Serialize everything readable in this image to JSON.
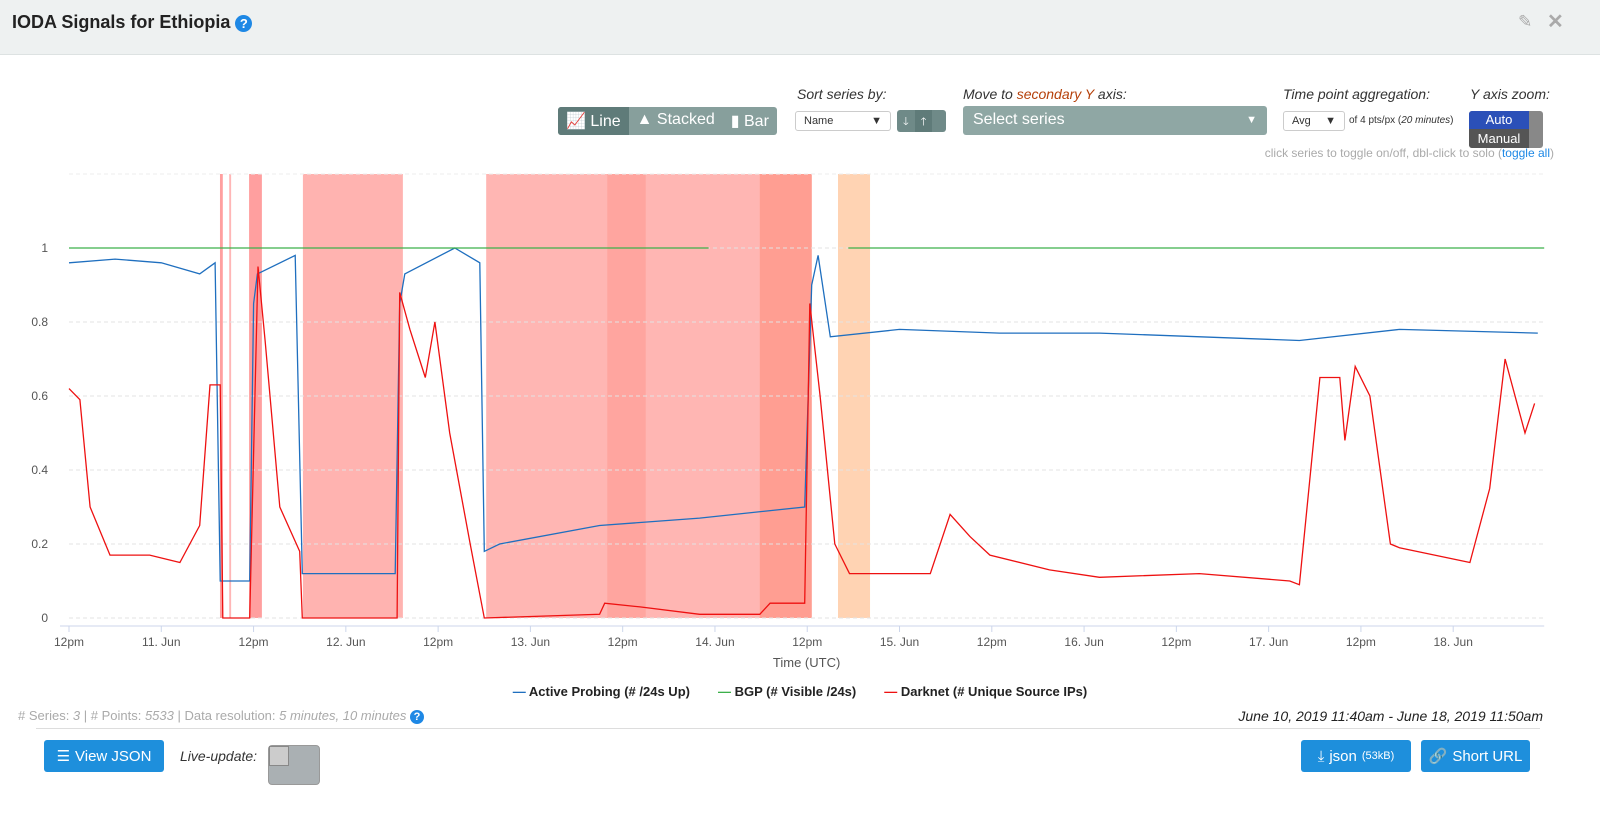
{
  "header": {
    "title": "IODA Signals for Ethiopia",
    "help_icon": "question-circle-icon",
    "edit_icon": "edit-icon",
    "close_icon": "close-icon"
  },
  "controls": {
    "chart_types": [
      {
        "label": "Line",
        "icon": "line-chart-icon",
        "active": true
      },
      {
        "label": "Stacked",
        "icon": "area-chart-icon",
        "active": false
      },
      {
        "label": "Bar",
        "icon": "bar-chart-icon",
        "active": false
      }
    ],
    "sort_label": "Sort series by:",
    "sort_value": "Name",
    "secondary_label_pre": "Move to ",
    "secondary_label_em": "secondary Y",
    "secondary_label_post": " axis:",
    "secondary_placeholder": "Select series",
    "aggregation_label": "Time point aggregation:",
    "aggregation_value": "Avg",
    "aggregation_note_pre": "of 4 pts/px (",
    "aggregation_note_em": "20 minutes",
    "aggregation_note_post": ")",
    "yzoom_label": "Y axis zoom:",
    "yzoom_auto": "Auto",
    "yzoom_manual": "Manual",
    "hint": "click series to toggle on/off, dbl-click to solo (",
    "hint_link": "toggle all",
    "hint_end": ")"
  },
  "chart_data": {
    "type": "line",
    "xlabel": "Time (UTC)",
    "ylabel": "",
    "ylim": [
      0,
      1.1
    ],
    "yticks": [
      "0",
      "0.2",
      "0.4",
      "0.6",
      "0.8",
      "1"
    ],
    "grid": true,
    "legend": "bottom",
    "xticks": [
      {
        "t": "2019-06-10 12:00",
        "label": "12pm"
      },
      {
        "t": "2019-06-11 00:00",
        "label": "11. Jun"
      },
      {
        "t": "2019-06-11 12:00",
        "label": "12pm"
      },
      {
        "t": "2019-06-12 00:00",
        "label": "12. Jun"
      },
      {
        "t": "2019-06-12 12:00",
        "label": "12pm"
      },
      {
        "t": "2019-06-13 00:00",
        "label": "13. Jun"
      },
      {
        "t": "2019-06-13 12:00",
        "label": "12pm"
      },
      {
        "t": "2019-06-14 00:00",
        "label": "14. Jun"
      },
      {
        "t": "2019-06-14 12:00",
        "label": "12pm"
      },
      {
        "t": "2019-06-15 00:00",
        "label": "15. Jun"
      },
      {
        "t": "2019-06-15 12:00",
        "label": "12pm"
      },
      {
        "t": "2019-06-16 00:00",
        "label": "16. Jun"
      },
      {
        "t": "2019-06-16 12:00",
        "label": "12pm"
      },
      {
        "t": "2019-06-17 00:00",
        "label": "17. Jun"
      },
      {
        "t": "2019-06-17 12:00",
        "label": "12pm"
      },
      {
        "t": "2019-06-18 00:00",
        "label": "18. Jun"
      }
    ],
    "xrange": [
      "2019-06-10 12:00",
      "2019-06-18 11:50"
    ],
    "alert_bands": [
      {
        "from": "2019-06-11 07:38",
        "to": "2019-06-11 08:00",
        "color": "#ff9f9f"
      },
      {
        "from": "2019-06-11 08:50",
        "to": "2019-06-11 09:05",
        "color": "#ffb6b6"
      },
      {
        "from": "2019-06-11 11:25",
        "to": "2019-06-11 13:05",
        "color": "#ff9f9f"
      },
      {
        "from": "2019-06-11 18:25",
        "to": "2019-06-12 07:25",
        "color": "#ffb3b0"
      },
      {
        "from": "2019-06-12 18:15",
        "to": "2019-06-14 12:35",
        "color": "#ffb6b3"
      },
      {
        "from": "2019-06-13 10:00",
        "to": "2019-06-13 15:00",
        "color": "#ffa59f"
      },
      {
        "from": "2019-06-14 05:50",
        "to": "2019-06-14 12:35",
        "color": "#ff9e92"
      },
      {
        "from": "2019-06-14 16:00",
        "to": "2019-06-14 20:10",
        "color": "#ffd3b3"
      }
    ],
    "series": [
      {
        "name": "Active Probing (# /24s Up)",
        "color": "#1f6fbf",
        "points": [
          [
            "2019-06-10 12:00",
            0.96
          ],
          [
            "2019-06-10 18:00",
            0.97
          ],
          [
            "2019-06-11 00:00",
            0.96
          ],
          [
            "2019-06-11 05:00",
            0.93
          ],
          [
            "2019-06-11 07:00",
            0.96
          ],
          [
            "2019-06-11 07:40",
            0.1
          ],
          [
            "2019-06-11 11:30",
            0.1
          ],
          [
            "2019-06-11 12:00",
            0.85
          ],
          [
            "2019-06-11 12:30",
            0.93
          ],
          [
            "2019-06-11 17:25",
            0.98
          ],
          [
            "2019-06-11 18:20",
            0.12
          ],
          [
            "2019-06-12 06:25",
            0.12
          ],
          [
            "2019-06-12 07:00",
            0.85
          ],
          [
            "2019-06-12 07:40",
            0.93
          ],
          [
            "2019-06-12 14:10",
            1.0
          ],
          [
            "2019-06-12 17:25",
            0.96
          ],
          [
            "2019-06-12 18:00",
            0.18
          ],
          [
            "2019-06-12 20:00",
            0.2
          ],
          [
            "2019-06-13 09:00",
            0.25
          ],
          [
            "2019-06-13 22:00",
            0.27
          ],
          [
            "2019-06-14 11:40",
            0.3
          ],
          [
            "2019-06-14 12:35",
            0.9
          ],
          [
            "2019-06-14 13:25",
            0.98
          ],
          [
            "2019-06-14 15:00",
            0.76
          ],
          [
            "2019-06-15 00:00",
            0.78
          ],
          [
            "2019-06-15 13:00",
            0.77
          ],
          [
            "2019-06-16 02:00",
            0.77
          ],
          [
            "2019-06-17 04:00",
            0.75
          ],
          [
            "2019-06-17 17:00",
            0.78
          ],
          [
            "2019-06-18 11:00",
            0.77
          ]
        ]
      },
      {
        "name": "BGP (# Visible /24s)",
        "color": "#3cb04a",
        "points": [
          [
            "2019-06-10 12:00",
            1
          ],
          [
            "2019-06-13 23:10",
            1
          ],
          [
            "2019-06-14 17:20",
            null
          ],
          [
            "2019-06-14 17:20",
            1
          ],
          [
            "2019-06-18 11:50",
            1
          ]
        ]
      },
      {
        "name": "Darknet (# Unique Source IPs)",
        "color": "#ee1111",
        "points": [
          [
            "2019-06-10 12:00",
            0.62
          ],
          [
            "2019-06-10 13:25",
            0.59
          ],
          [
            "2019-06-10 14:45",
            0.3
          ],
          [
            "2019-06-10 17:20",
            0.17
          ],
          [
            "2019-06-10 22:30",
            0.17
          ],
          [
            "2019-06-11 02:25",
            0.15
          ],
          [
            "2019-06-11 05:00",
            0.25
          ],
          [
            "2019-06-11 06:20",
            0.63
          ],
          [
            "2019-06-11 07:40",
            0.63
          ],
          [
            "2019-06-11 08:00",
            0.0
          ],
          [
            "2019-06-11 11:30",
            0.0
          ],
          [
            "2019-06-11 12:35",
            0.95
          ],
          [
            "2019-06-11 13:30",
            0.75
          ],
          [
            "2019-06-11 15:25",
            0.3
          ],
          [
            "2019-06-11 18:00",
            0.18
          ],
          [
            "2019-06-11 18:20",
            0.0
          ],
          [
            "2019-06-12 06:40",
            0.0
          ],
          [
            "2019-06-12 07:00",
            0.88
          ],
          [
            "2019-06-12 08:20",
            0.78
          ],
          [
            "2019-06-12 10:20",
            0.65
          ],
          [
            "2019-06-12 11:35",
            0.8
          ],
          [
            "2019-06-12 13:30",
            0.5
          ],
          [
            "2019-06-12 16:10",
            0.2
          ],
          [
            "2019-06-12 18:00",
            0.0
          ],
          [
            "2019-06-13 09:00",
            0.01
          ],
          [
            "2019-06-13 09:40",
            0.04
          ],
          [
            "2019-06-13 14:15",
            0.03
          ],
          [
            "2019-06-13 22:00",
            0.01
          ],
          [
            "2019-06-14 05:50",
            0.01
          ],
          [
            "2019-06-14 07:10",
            0.04
          ],
          [
            "2019-06-14 11:40",
            0.04
          ],
          [
            "2019-06-14 12:20",
            0.85
          ],
          [
            "2019-06-14 13:40",
            0.6
          ],
          [
            "2019-06-14 15:35",
            0.2
          ],
          [
            "2019-06-14 17:30",
            0.12
          ],
          [
            "2019-06-15 04:00",
            0.12
          ],
          [
            "2019-06-15 06:35",
            0.28
          ],
          [
            "2019-06-15 09:10",
            0.22
          ],
          [
            "2019-06-15 11:45",
            0.17
          ],
          [
            "2019-06-15 19:30",
            0.13
          ],
          [
            "2019-06-16 02:00",
            0.11
          ],
          [
            "2019-06-16 15:00",
            0.12
          ],
          [
            "2019-06-17 02:45",
            0.1
          ],
          [
            "2019-06-17 04:00",
            0.09
          ],
          [
            "2019-06-17 06:40",
            0.65
          ],
          [
            "2019-06-17 09:15",
            0.65
          ],
          [
            "2019-06-17 09:55",
            0.48
          ],
          [
            "2019-06-17 11:15",
            0.68
          ],
          [
            "2019-06-17 13:10",
            0.6
          ],
          [
            "2019-06-17 15:50",
            0.2
          ],
          [
            "2019-06-17 17:00",
            0.19
          ],
          [
            "2019-06-18 02:10",
            0.15
          ],
          [
            "2019-06-18 04:45",
            0.35
          ],
          [
            "2019-06-18 06:45",
            0.7
          ],
          [
            "2019-06-18 09:20",
            0.5
          ],
          [
            "2019-06-18 10:35",
            0.58
          ]
        ]
      }
    ]
  },
  "footer": {
    "stats_series_label": "# Series: ",
    "stats_series": "3",
    "stats_points_label": " | # Points: ",
    "stats_points": "5533",
    "stats_res_label": " | Data resolution: ",
    "stats_res": "5 minutes, 10 minutes",
    "range": "June 10, 2019 11:40am - June 18, 2019 11:50am",
    "view_json": "View JSON",
    "live_update": "Live-update:",
    "json_download": "json",
    "json_size": "(53kB)",
    "short_url": "Short URL"
  }
}
